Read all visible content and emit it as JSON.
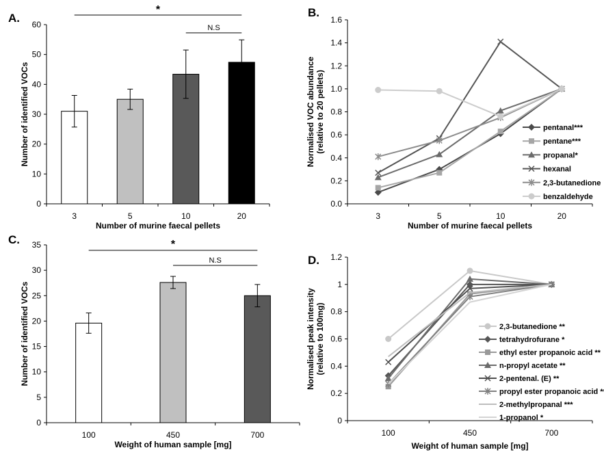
{
  "chart_data": [
    {
      "panel": "A.",
      "type": "bar",
      "categories": [
        "3",
        "5",
        "10",
        "20"
      ],
      "values": [
        31,
        35,
        43.4,
        47.4
      ],
      "errors": [
        5.3,
        3.4,
        8.1,
        7.5
      ],
      "bar_colors": [
        "#ffffff",
        "#c0c0c0",
        "#595959",
        "#000000"
      ],
      "xlabel": "Number of murine faecal pellets",
      "ylabel": "Number of identified VOCs",
      "ylim": [
        0,
        60
      ],
      "yticks": [
        0,
        10,
        20,
        30,
        40,
        50,
        60
      ],
      "brackets": [
        {
          "from": 0,
          "to": 3,
          "label": "*"
        },
        {
          "from": 2,
          "to": 3,
          "label": "N.S"
        }
      ]
    },
    {
      "panel": "B.",
      "type": "line",
      "categories": [
        "3",
        "5",
        "10",
        "20"
      ],
      "xlabel": "Number of murine faecal pellets",
      "ylabel": [
        "Normalised VOC abundance",
        "(relative to 20 pellets)"
      ],
      "ylim": [
        0,
        1.6
      ],
      "yticks": [
        "0.0",
        "0.2",
        "0.4",
        "0.6",
        "0.8",
        "1.0",
        "1.2",
        "1.4",
        "1.6"
      ],
      "legend_position": "right",
      "series": [
        {
          "name": "pentanal***",
          "color": "#4a4a4a",
          "marker": "diamond",
          "values": [
            0.1,
            0.3,
            0.61,
            1.0
          ]
        },
        {
          "name": "pentane***",
          "color": "#a6a6a6",
          "marker": "square",
          "values": [
            0.14,
            0.27,
            0.63,
            1.0
          ]
        },
        {
          "name": "propanal*",
          "color": "#6b6b6b",
          "marker": "triangle",
          "values": [
            0.23,
            0.43,
            0.81,
            1.0
          ]
        },
        {
          "name": "hexanal",
          "color": "#555555",
          "marker": "x",
          "values": [
            0.27,
            0.57,
            1.41,
            1.0
          ]
        },
        {
          "name": "2,3-butanedione",
          "color": "#8c8c8c",
          "marker": "star",
          "values": [
            0.41,
            0.55,
            0.75,
            1.0
          ]
        },
        {
          "name": "benzaldehyde",
          "color": "#cccccc",
          "marker": "circle",
          "values": [
            0.99,
            0.98,
            0.76,
            1.0
          ]
        }
      ]
    },
    {
      "panel": "C.",
      "type": "bar",
      "categories": [
        "100",
        "450",
        "700"
      ],
      "values": [
        19.6,
        27.6,
        25
      ],
      "errors": [
        2.0,
        1.2,
        2.2
      ],
      "bar_colors": [
        "#ffffff",
        "#c0c0c0",
        "#595959"
      ],
      "xlabel": "Weight of human sample [mg]",
      "ylabel": "Number of identified VOCs",
      "ylim": [
        0,
        35
      ],
      "yticks": [
        0,
        5,
        10,
        15,
        20,
        25,
        30,
        35
      ],
      "brackets": [
        {
          "from": 0,
          "to": 2,
          "label": "*"
        },
        {
          "from": 1,
          "to": 2,
          "label": "N.S"
        }
      ]
    },
    {
      "panel": "D.",
      "type": "line",
      "categories": [
        "100",
        "450",
        "700"
      ],
      "xlabel": "Weight of human sample [mg]",
      "ylabel": [
        "Normalised peak intensity",
        "(relative to 100mg)"
      ],
      "ylim": [
        0,
        1.2
      ],
      "yticks": [
        "0",
        "0.2",
        "0.4",
        "0.6",
        "0.8",
        "1",
        "1.2"
      ],
      "legend_position": "right",
      "series": [
        {
          "name": "2,3-butanedione **",
          "color": "#c8c8c8",
          "marker": "circle",
          "values": [
            0.6,
            1.1,
            1.0
          ]
        },
        {
          "name": "tetrahydrofurane *",
          "color": "#555555",
          "marker": "diamond",
          "values": [
            0.33,
            1.0,
            1.0
          ]
        },
        {
          "name": "ethyl ester propanoic acid **",
          "color": "#999999",
          "marker": "square",
          "values": [
            0.25,
            0.93,
            1.0
          ]
        },
        {
          "name": "n-propyl acetate **",
          "color": "#6b6b6b",
          "marker": "triangle",
          "values": [
            0.31,
            1.04,
            1.0
          ]
        },
        {
          "name": "2-pentenal. (E) **",
          "color": "#4d4d4d",
          "marker": "x",
          "values": [
            0.43,
            0.97,
            1.0
          ]
        },
        {
          "name": "propyl ester propanoic acid **",
          "color": "#808080",
          "marker": "star",
          "values": [
            0.27,
            0.91,
            1.0
          ]
        },
        {
          "name": "2-methylpropanal ***",
          "color": "#bdbdbd",
          "marker": "none",
          "values": [
            0.47,
            0.94,
            1.0
          ]
        },
        {
          "name": "1-propanol *",
          "color": "#d3d3d3",
          "marker": "none",
          "values": [
            0.27,
            0.87,
            1.0
          ]
        }
      ]
    }
  ]
}
